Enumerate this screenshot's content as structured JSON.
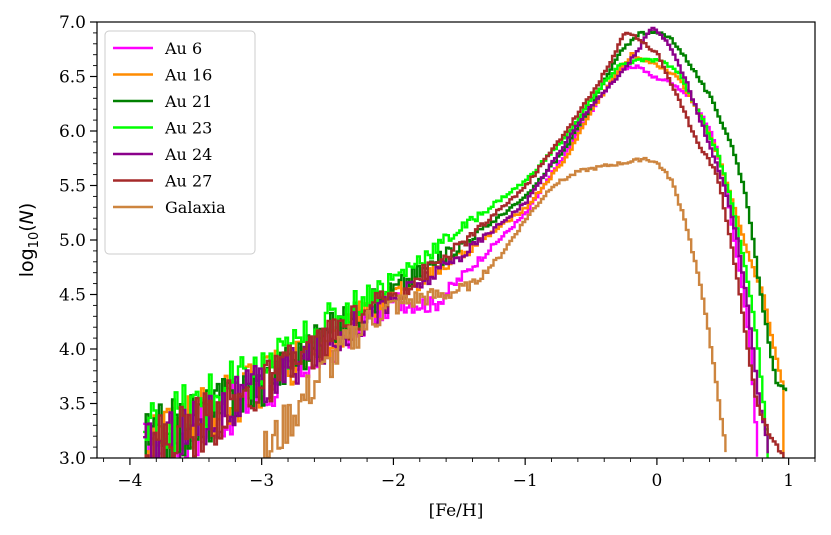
{
  "chart_data": {
    "type": "line",
    "xlabel": "[Fe/H]",
    "ylabel": "log10(N)",
    "xlim": [
      -4.25,
      1.2
    ],
    "ylim": [
      3.0,
      7.0
    ],
    "x_ticks": [
      -4,
      -3,
      -2,
      -1,
      0,
      1
    ],
    "x_tick_labels": [
      "−4",
      "−3",
      "−2",
      "−1",
      "0",
      "1"
    ],
    "y_ticks": [
      3.0,
      3.5,
      4.0,
      4.5,
      5.0,
      5.5,
      6.0,
      6.5,
      7.0
    ],
    "y_tick_labels": [
      "3.0",
      "3.5",
      "4.0",
      "4.5",
      "5.0",
      "5.5",
      "6.0",
      "6.5",
      "7.0"
    ],
    "legend_position": "top-left",
    "series": [
      {
        "name": "Au 6",
        "color": "#ff00ff",
        "anchors": [
          [
            -3.9,
            3.05
          ],
          [
            -3.5,
            3.3
          ],
          [
            -3.0,
            3.6
          ],
          [
            -2.5,
            4.0
          ],
          [
            -2.0,
            4.45
          ],
          [
            -1.7,
            4.4
          ],
          [
            -1.5,
            4.65
          ],
          [
            -1.0,
            5.25
          ],
          [
            -0.7,
            5.8
          ],
          [
            -0.5,
            6.2
          ],
          [
            -0.3,
            6.55
          ],
          [
            -0.15,
            6.6
          ],
          [
            -0.05,
            6.5
          ],
          [
            0.1,
            6.45
          ],
          [
            0.25,
            6.3
          ],
          [
            0.4,
            6.0
          ],
          [
            0.5,
            5.6
          ],
          [
            0.58,
            5.0
          ],
          [
            0.65,
            4.5
          ],
          [
            0.7,
            4.0
          ],
          [
            0.73,
            3.5
          ],
          [
            0.76,
            3.0
          ]
        ]
      },
      {
        "name": "Au 16",
        "color": "#ff8c00",
        "anchors": [
          [
            -3.9,
            3.1
          ],
          [
            -3.5,
            3.35
          ],
          [
            -3.0,
            3.7
          ],
          [
            -2.5,
            4.1
          ],
          [
            -2.0,
            4.5
          ],
          [
            -1.5,
            4.85
          ],
          [
            -1.0,
            5.3
          ],
          [
            -0.7,
            5.75
          ],
          [
            -0.5,
            6.2
          ],
          [
            -0.3,
            6.55
          ],
          [
            -0.2,
            6.7
          ],
          [
            -0.1,
            6.65
          ],
          [
            0.0,
            6.6
          ],
          [
            0.15,
            6.5
          ],
          [
            0.3,
            6.2
          ],
          [
            0.45,
            5.8
          ],
          [
            0.6,
            5.2
          ],
          [
            0.7,
            4.8
          ],
          [
            0.8,
            4.5
          ],
          [
            0.88,
            4.0
          ],
          [
            0.94,
            3.7
          ],
          [
            0.96,
            3.0
          ]
        ]
      },
      {
        "name": "Au 21",
        "color": "#008000",
        "anchors": [
          [
            -3.9,
            3.1
          ],
          [
            -3.5,
            3.35
          ],
          [
            -3.0,
            3.7
          ],
          [
            -2.5,
            4.15
          ],
          [
            -2.0,
            4.55
          ],
          [
            -1.5,
            4.95
          ],
          [
            -1.0,
            5.4
          ],
          [
            -0.7,
            5.85
          ],
          [
            -0.5,
            6.25
          ],
          [
            -0.3,
            6.7
          ],
          [
            -0.15,
            6.9
          ],
          [
            0.0,
            6.9
          ],
          [
            0.1,
            6.85
          ],
          [
            0.25,
            6.6
          ],
          [
            0.4,
            6.3
          ],
          [
            0.55,
            5.9
          ],
          [
            0.65,
            5.5
          ],
          [
            0.72,
            5.0
          ],
          [
            0.78,
            4.5
          ],
          [
            0.85,
            4.0
          ],
          [
            0.9,
            3.7
          ],
          [
            0.98,
            3.6
          ]
        ]
      },
      {
        "name": "Au 23",
        "color": "#00ff00",
        "anchors": [
          [
            -3.9,
            3.2
          ],
          [
            -3.5,
            3.45
          ],
          [
            -3.0,
            3.8
          ],
          [
            -2.5,
            4.25
          ],
          [
            -2.0,
            4.65
          ],
          [
            -1.5,
            5.1
          ],
          [
            -1.0,
            5.55
          ],
          [
            -0.7,
            5.95
          ],
          [
            -0.5,
            6.3
          ],
          [
            -0.3,
            6.6
          ],
          [
            -0.15,
            6.65
          ],
          [
            0.0,
            6.65
          ],
          [
            0.15,
            6.55
          ],
          [
            0.3,
            6.2
          ],
          [
            0.45,
            5.8
          ],
          [
            0.55,
            5.4
          ],
          [
            0.62,
            5.0
          ],
          [
            0.7,
            4.5
          ],
          [
            0.76,
            4.0
          ],
          [
            0.8,
            3.5
          ],
          [
            0.84,
            3.0
          ]
        ]
      },
      {
        "name": "Au 24",
        "color": "#8b008b",
        "anchors": [
          [
            -3.9,
            3.0
          ],
          [
            -3.5,
            3.3
          ],
          [
            -3.0,
            3.65
          ],
          [
            -2.5,
            4.05
          ],
          [
            -2.0,
            4.45
          ],
          [
            -1.5,
            4.85
          ],
          [
            -1.0,
            5.35
          ],
          [
            -0.7,
            5.9
          ],
          [
            -0.5,
            6.25
          ],
          [
            -0.3,
            6.5
          ],
          [
            -0.15,
            6.75
          ],
          [
            -0.05,
            6.95
          ],
          [
            0.05,
            6.85
          ],
          [
            0.2,
            6.5
          ],
          [
            0.35,
            6.0
          ],
          [
            0.5,
            5.5
          ],
          [
            0.6,
            5.0
          ],
          [
            0.67,
            4.5
          ],
          [
            0.72,
            4.0
          ],
          [
            0.77,
            3.5
          ],
          [
            0.82,
            3.2
          ],
          [
            0.85,
            3.0
          ]
        ]
      },
      {
        "name": "Au 27",
        "color": "#a52a2a",
        "anchors": [
          [
            -3.9,
            3.05
          ],
          [
            -3.5,
            3.3
          ],
          [
            -3.0,
            3.65
          ],
          [
            -2.5,
            4.1
          ],
          [
            -2.0,
            4.5
          ],
          [
            -1.5,
            4.95
          ],
          [
            -1.0,
            5.5
          ],
          [
            -0.7,
            6.0
          ],
          [
            -0.5,
            6.35
          ],
          [
            -0.35,
            6.65
          ],
          [
            -0.25,
            6.92
          ],
          [
            -0.15,
            6.85
          ],
          [
            0.0,
            6.7
          ],
          [
            0.15,
            6.3
          ],
          [
            0.3,
            5.9
          ],
          [
            0.45,
            5.6
          ],
          [
            0.55,
            5.0
          ],
          [
            0.62,
            4.5
          ],
          [
            0.68,
            4.0
          ],
          [
            0.75,
            3.5
          ],
          [
            0.85,
            3.2
          ],
          [
            0.96,
            3.0
          ]
        ]
      },
      {
        "name": "Galaxia",
        "color": "#cd853f",
        "anchors": [
          [
            -3.0,
            3.0
          ],
          [
            -2.8,
            3.35
          ],
          [
            -2.6,
            3.7
          ],
          [
            -2.4,
            4.0
          ],
          [
            -2.2,
            4.25
          ],
          [
            -2.0,
            4.4
          ],
          [
            -1.8,
            4.47
          ],
          [
            -1.6,
            4.5
          ],
          [
            -1.4,
            4.6
          ],
          [
            -1.2,
            4.85
          ],
          [
            -1.0,
            5.2
          ],
          [
            -0.8,
            5.5
          ],
          [
            -0.6,
            5.63
          ],
          [
            -0.4,
            5.68
          ],
          [
            -0.2,
            5.72
          ],
          [
            -0.1,
            5.75
          ],
          [
            0.0,
            5.7
          ],
          [
            0.1,
            5.55
          ],
          [
            0.2,
            5.2
          ],
          [
            0.3,
            4.7
          ],
          [
            0.38,
            4.2
          ],
          [
            0.45,
            3.6
          ],
          [
            0.5,
            3.2
          ],
          [
            0.53,
            3.0
          ]
        ]
      }
    ]
  }
}
